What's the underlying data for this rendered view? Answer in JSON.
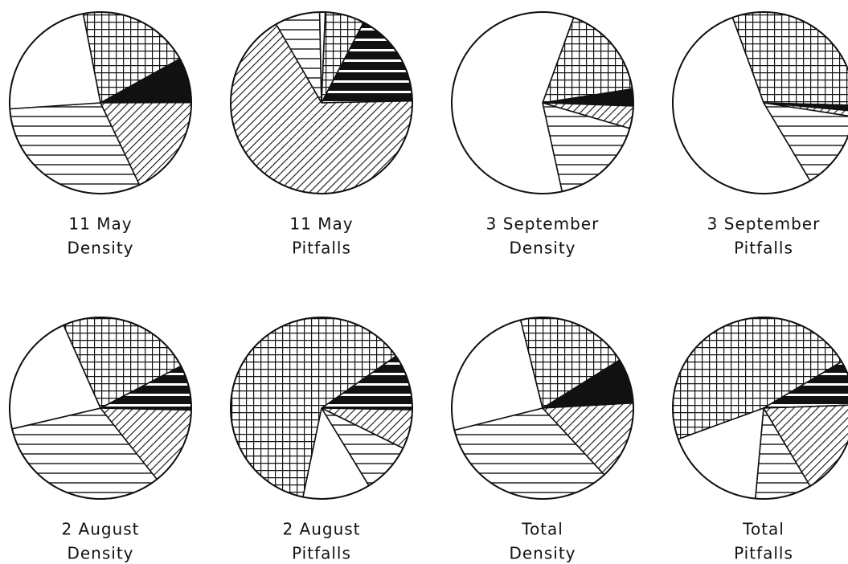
{
  "chart_data": [
    {
      "type": "pie",
      "title": "11 May",
      "subtitle": "Density",
      "startangle": 349,
      "categories": [
        null,
        null,
        null,
        null,
        null
      ],
      "values": [
        20,
        8,
        18,
        31,
        23
      ],
      "patterns": [
        "grid",
        "solid",
        "diagonal",
        "horizontal",
        "blank"
      ]
    },
    {
      "type": "pie",
      "title": "11 May",
      "subtitle": "Pitfalls",
      "startangle": 330,
      "categories": [
        null,
        null,
        null,
        null,
        null
      ],
      "values": [
        8,
        1,
        7,
        17,
        67
      ],
      "patterns": [
        "horizontal",
        "blank",
        "grid",
        "bands",
        "diagonal"
      ]
    },
    {
      "type": "pie",
      "title": "3 September",
      "subtitle": "Density",
      "startangle": 20,
      "categories": [
        null,
        null,
        null,
        null,
        null
      ],
      "values": [
        17,
        3,
        4,
        17,
        59
      ],
      "patterns": [
        "grid",
        "solid",
        "diagonal",
        "horizontal",
        "blank"
      ]
    },
    {
      "type": "pie",
      "title": "3 September",
      "subtitle": "Pitfalls",
      "startangle": 340,
      "categories": [
        null,
        null,
        null,
        null,
        null
      ],
      "values": [
        31,
        1,
        1,
        14,
        53
      ],
      "patterns": [
        "grid",
        "solid",
        "diagonal",
        "horizontal",
        "blank"
      ]
    },
    {
      "type": "pie",
      "title": "2 August",
      "subtitle": "Density",
      "startangle": 336,
      "categories": [
        null,
        null,
        null,
        null,
        null
      ],
      "values": [
        24,
        8,
        14,
        32,
        22
      ],
      "patterns": [
        "grid",
        "bands",
        "diagonal",
        "horizontal",
        "blank"
      ]
    },
    {
      "type": "pie",
      "title": "2 August",
      "subtitle": "Pitfalls",
      "startangle": 55,
      "categories": [
        null,
        null,
        null,
        null,
        null
      ],
      "values": [
        10,
        7,
        9,
        12,
        62
      ],
      "patterns": [
        "bands",
        "diagonal",
        "horizontal",
        "blank",
        "grid"
      ]
    },
    {
      "type": "pie",
      "title": "Total",
      "subtitle": "Density",
      "startangle": 346,
      "categories": [
        null,
        null,
        null,
        null,
        null
      ],
      "values": [
        20,
        8,
        14,
        33,
        25
      ],
      "patterns": [
        "grid",
        "solid",
        "diagonal",
        "horizontal",
        "blank"
      ]
    },
    {
      "type": "pie",
      "title": "Total",
      "subtitle": "Pitfalls",
      "startangle": 250,
      "categories": [
        null,
        null,
        null,
        null,
        null
      ],
      "values": [
        47,
        8,
        17,
        10,
        18
      ],
      "patterns": [
        "grid",
        "bands",
        "diagonal",
        "horizontal",
        "blank"
      ]
    }
  ]
}
